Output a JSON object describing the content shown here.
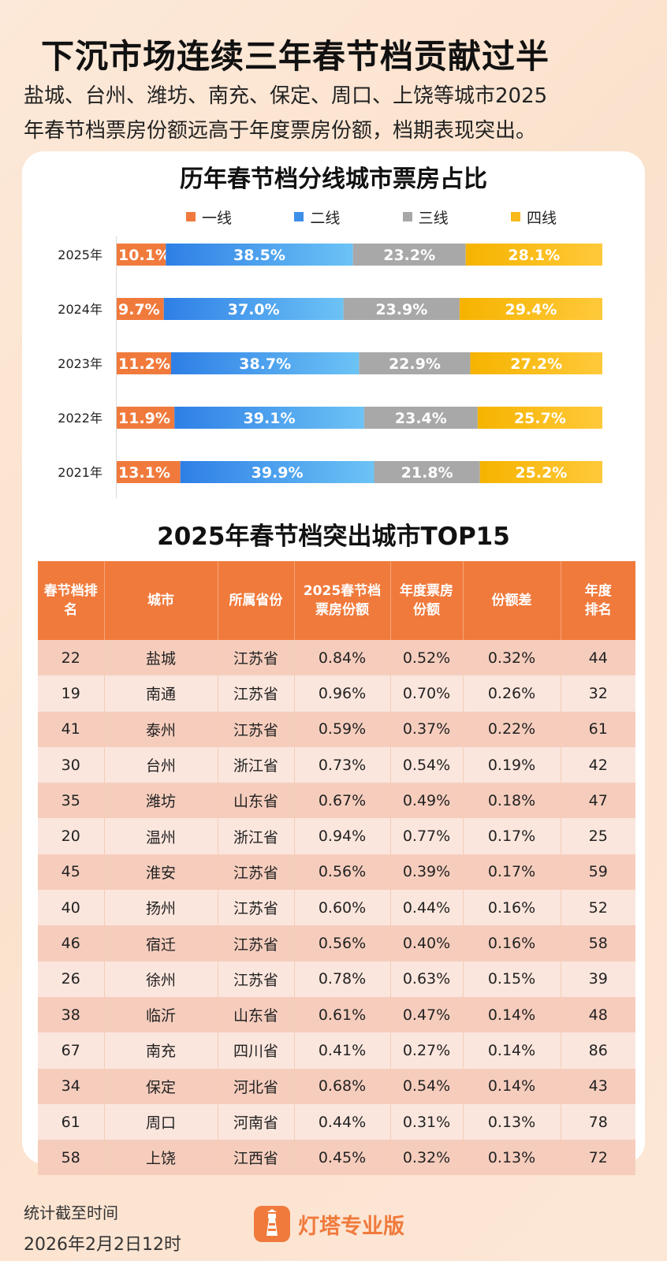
{
  "header": {
    "title": "下沉市场连续三年春节档贡献过半",
    "subtitle_line1": "盐城、台州、潍坊、南充、保定、周口、上饶等城市2025",
    "subtitle_line2": "年春节档票房份额远高于年度票房份额，档期表现突出。"
  },
  "chart_data": {
    "type": "bar",
    "orientation": "horizontal",
    "stacked": true,
    "normalized": true,
    "title": "历年春节档分线城市票房占比",
    "legend_position": "top",
    "categories": [
      "2025年",
      "2024年",
      "2023年",
      "2022年",
      "2021年"
    ],
    "series": [
      {
        "name": "一线",
        "color": "#f07a3c",
        "values": [
          10.1,
          9.7,
          11.2,
          11.9,
          13.1
        ],
        "labels": [
          "10.1%",
          "9.7%",
          "11.2%",
          "11.9%",
          "13.1%"
        ]
      },
      {
        "name": "二线",
        "color": "#3d8fe8",
        "values": [
          38.5,
          37.0,
          38.7,
          39.1,
          39.9
        ],
        "labels": [
          "38.5%",
          "37.0%",
          "38.7%",
          "39.1%",
          "39.9%"
        ]
      },
      {
        "name": "三线",
        "color": "#a8a8a8",
        "values": [
          23.2,
          23.9,
          22.9,
          23.4,
          21.8
        ],
        "labels": [
          "23.2%",
          "23.9%",
          "22.9%",
          "23.4%",
          "21.8%"
        ]
      },
      {
        "name": "四线",
        "color": "#f7b91c",
        "values": [
          28.1,
          29.4,
          27.2,
          25.7,
          25.2
        ],
        "labels": [
          "28.1%",
          "29.4%",
          "27.2%",
          "25.7%",
          "25.2%"
        ]
      }
    ]
  },
  "table": {
    "title": "2025年春节档突出城市TOP15",
    "headers": [
      [
        "春节档排",
        "名"
      ],
      [
        "城市"
      ],
      [
        "所属省份"
      ],
      [
        "2025春节档",
        "票房份额"
      ],
      [
        "年度票房",
        "份额"
      ],
      [
        "份额差"
      ],
      [
        "年度",
        "排名"
      ]
    ],
    "rows": [
      [
        "22",
        "盐城",
        "江苏省",
        "0.84%",
        "0.52%",
        "0.32%",
        "44"
      ],
      [
        "19",
        "南通",
        "江苏省",
        "0.96%",
        "0.70%",
        "0.26%",
        "32"
      ],
      [
        "41",
        "泰州",
        "江苏省",
        "0.59%",
        "0.37%",
        "0.22%",
        "61"
      ],
      [
        "30",
        "台州",
        "浙江省",
        "0.73%",
        "0.54%",
        "0.19%",
        "42"
      ],
      [
        "35",
        "潍坊",
        "山东省",
        "0.67%",
        "0.49%",
        "0.18%",
        "47"
      ],
      [
        "20",
        "温州",
        "浙江省",
        "0.94%",
        "0.77%",
        "0.17%",
        "25"
      ],
      [
        "45",
        "淮安",
        "江苏省",
        "0.56%",
        "0.39%",
        "0.17%",
        "59"
      ],
      [
        "40",
        "扬州",
        "江苏省",
        "0.60%",
        "0.44%",
        "0.16%",
        "52"
      ],
      [
        "46",
        "宿迁",
        "江苏省",
        "0.56%",
        "0.40%",
        "0.16%",
        "58"
      ],
      [
        "26",
        "徐州",
        "江苏省",
        "0.78%",
        "0.63%",
        "0.15%",
        "39"
      ],
      [
        "38",
        "临沂",
        "山东省",
        "0.61%",
        "0.47%",
        "0.14%",
        "48"
      ],
      [
        "67",
        "南充",
        "四川省",
        "0.41%",
        "0.27%",
        "0.14%",
        "86"
      ],
      [
        "34",
        "保定",
        "河北省",
        "0.68%",
        "0.54%",
        "0.14%",
        "43"
      ],
      [
        "61",
        "周口",
        "河南省",
        "0.44%",
        "0.31%",
        "0.13%",
        "78"
      ],
      [
        "58",
        "上饶",
        "江西省",
        "0.45%",
        "0.32%",
        "0.13%",
        "72"
      ]
    ]
  },
  "footer": {
    "label": "统计截至时间",
    "date": "2026年2月2日12时",
    "brand": "灯塔专业版",
    "brand_color": "#f07a3c"
  }
}
